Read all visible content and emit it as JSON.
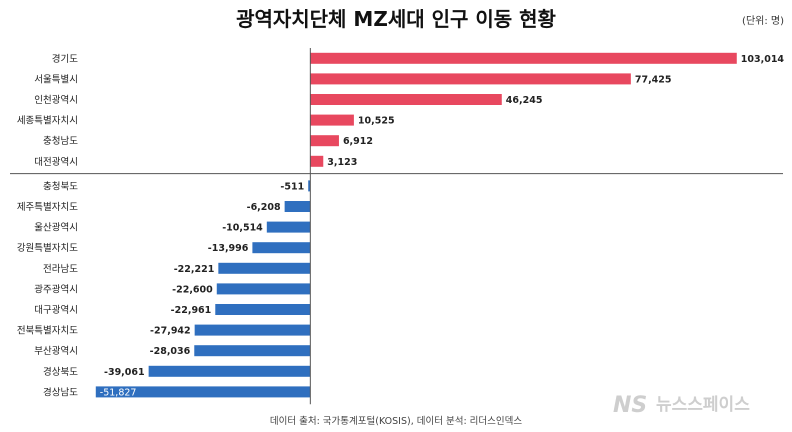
{
  "chart_data": {
    "type": "bar",
    "orientation": "horizontal",
    "title": "광역자치단체 MZ세대 인구 이동 현황",
    "unit": "(단위: 명)",
    "categories": [
      "경기도",
      "서울특별시",
      "인천광역시",
      "세종특별자치시",
      "충청남도",
      "대전광역시",
      "충청북도",
      "제주특별자치도",
      "울산광역시",
      "강원특별자치도",
      "전라남도",
      "광주광역시",
      "대구광역시",
      "전북특별자치도",
      "부산광역시",
      "경상북도",
      "경상남도"
    ],
    "values": [
      103014,
      77425,
      46245,
      10525,
      6912,
      3123,
      -511,
      -6208,
      -10514,
      -13996,
      -22221,
      -22600,
      -22961,
      -27942,
      -28036,
      -39061,
      -51827
    ],
    "value_labels": [
      "103,014",
      "77,425",
      "46,245",
      "10,525",
      "6,912",
      "3,123",
      "-511",
      "-6,208",
      "-10,514",
      "-13,996",
      "-22,221",
      "-22,600",
      "-22,961",
      "-27,942",
      "-28,036",
      "-39,061",
      "-51,827"
    ],
    "xlim": [
      -52500,
      105000
    ],
    "colors": {
      "positive": "#e8485f",
      "negative": "#2f6fbf",
      "separator": "#555555"
    },
    "source": "데이터 출처: 국가통계포털(KOSIS), 데이터 분석: 리더스인덱스"
  },
  "watermark": {
    "logo": "NS",
    "text": "뉴스스페이스"
  }
}
